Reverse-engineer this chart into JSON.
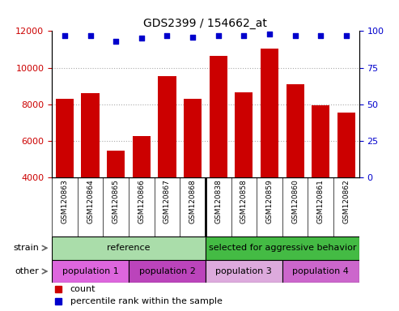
{
  "title": "GDS2399 / 154662_at",
  "samples": [
    "GSM120863",
    "GSM120864",
    "GSM120865",
    "GSM120866",
    "GSM120867",
    "GSM120868",
    "GSM120838",
    "GSM120858",
    "GSM120859",
    "GSM120860",
    "GSM120861",
    "GSM120862"
  ],
  "counts": [
    8300,
    8600,
    5450,
    6250,
    9550,
    8300,
    10650,
    8650,
    11050,
    9100,
    7950,
    7550
  ],
  "percentile_ranks": [
    97,
    97,
    93,
    95,
    97,
    96,
    97,
    97,
    98,
    97,
    97,
    97
  ],
  "ylim_left": [
    4000,
    12000
  ],
  "ylim_right": [
    0,
    100
  ],
  "yticks_left": [
    4000,
    6000,
    8000,
    10000,
    12000
  ],
  "yticks_right": [
    0,
    25,
    50,
    75,
    100
  ],
  "bar_color": "#cc0000",
  "dot_color": "#0000cc",
  "strain_groups": [
    {
      "label": "reference",
      "start": 0,
      "end": 6,
      "color": "#aaddaa"
    },
    {
      "label": "selected for aggressive behavior",
      "start": 6,
      "end": 12,
      "color": "#44bb44"
    }
  ],
  "other_groups": [
    {
      "label": "population 1",
      "start": 0,
      "end": 3,
      "color": "#dd66dd"
    },
    {
      "label": "population 2",
      "start": 3,
      "end": 6,
      "color": "#bb44bb"
    },
    {
      "label": "population 3",
      "start": 6,
      "end": 9,
      "color": "#ddaadd"
    },
    {
      "label": "population 4",
      "start": 9,
      "end": 12,
      "color": "#cc66cc"
    }
  ],
  "legend_count_color": "#cc0000",
  "legend_percentile_color": "#0000cc",
  "axis_color_left": "#cc0000",
  "axis_color_right": "#0000cc",
  "grid_color": "#aaaaaa",
  "bg_color": "#ffffff",
  "tick_area_bg": "#cccccc",
  "n": 12
}
